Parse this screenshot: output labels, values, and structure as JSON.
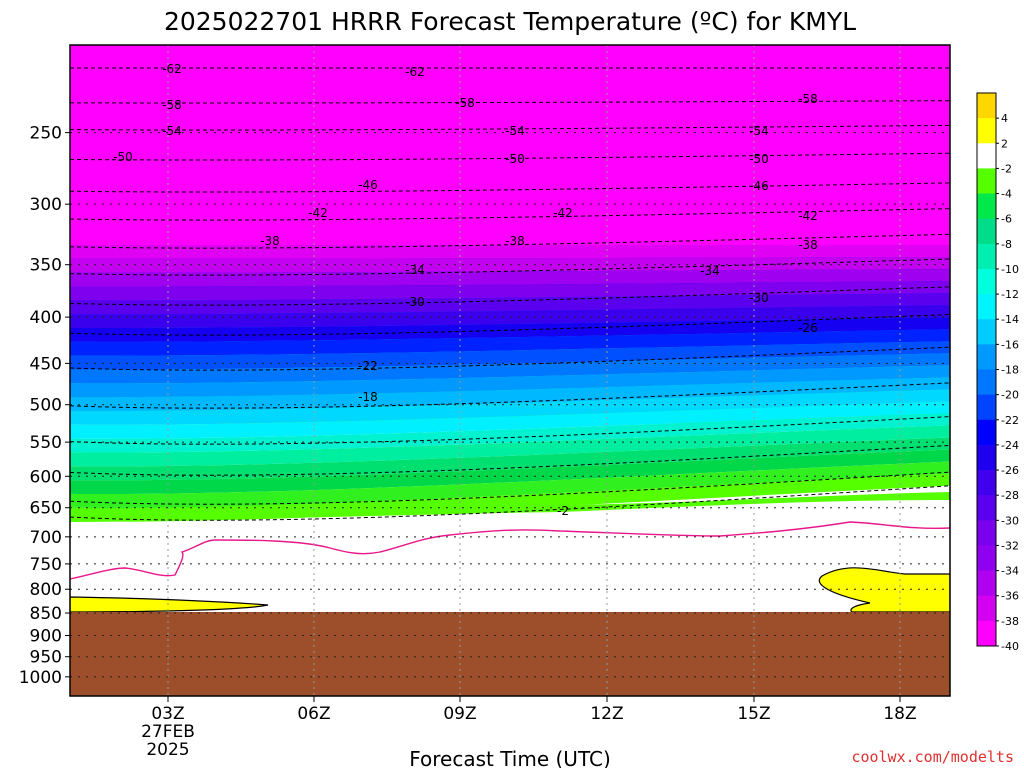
{
  "chart_data": {
    "type": "heatmap",
    "title": "2025022701 HRRR Forecast Temperature (ºC) for KMYL",
    "xlabel": "Forecast Time (UTC)",
    "ylabel": "",
    "credit": "coolwx.com/modelts",
    "y_axis": {
      "scale": "log-pressure",
      "unit": "hPa",
      "range": [
        1050,
        200
      ],
      "ticks": [
        "250",
        "300",
        "350",
        "400",
        "450",
        "500",
        "550",
        "600",
        "650",
        "700",
        "750",
        "800",
        "850",
        "900",
        "950",
        "1000"
      ]
    },
    "x_axis": {
      "range_hours": [
        0,
        18
      ],
      "ticks": [
        {
          "label": "03Z",
          "sub": "27FEB",
          "sub2": "2025"
        },
        {
          "label": "06Z"
        },
        {
          "label": "09Z"
        },
        {
          "label": "12Z"
        },
        {
          "label": "15Z"
        },
        {
          "label": "18Z"
        }
      ]
    },
    "colorbar": {
      "labels": [
        "4",
        "2",
        "-2",
        "-4",
        "-6",
        "-8",
        "-10",
        "-12",
        "-14",
        "-16",
        "-18",
        "-20",
        "-22",
        "-24",
        "-26",
        "-28",
        "-30",
        "-32",
        "-34",
        "-36",
        "-38",
        "-40"
      ],
      "colors": [
        "#ffd700",
        "#ffff00",
        "#ffffff",
        "#55ff00",
        "#00e84a",
        "#00dd88",
        "#00eeb0",
        "#00ffdd",
        "#00f4ff",
        "#00ccff",
        "#0099ff",
        "#0077ff",
        "#0044ff",
        "#0000ff",
        "#1e00ee",
        "#4000ee",
        "#5a00ee",
        "#7a00ee",
        "#9000f0",
        "#b000f0",
        "#d400f0",
        "#ff00ff"
      ]
    },
    "contour_labels": [
      "-62",
      "-58",
      "-54",
      "-50",
      "-46",
      "-42",
      "-38",
      "-34",
      "-30",
      "-26",
      "-22",
      "-18",
      "-2"
    ],
    "surface_pressure_hpa": 850,
    "below_ground_color": "#9c4f2a",
    "colors": {
      "zero_line": "#e8178a",
      "grid": "#888888",
      "credit": "#e03030"
    }
  }
}
